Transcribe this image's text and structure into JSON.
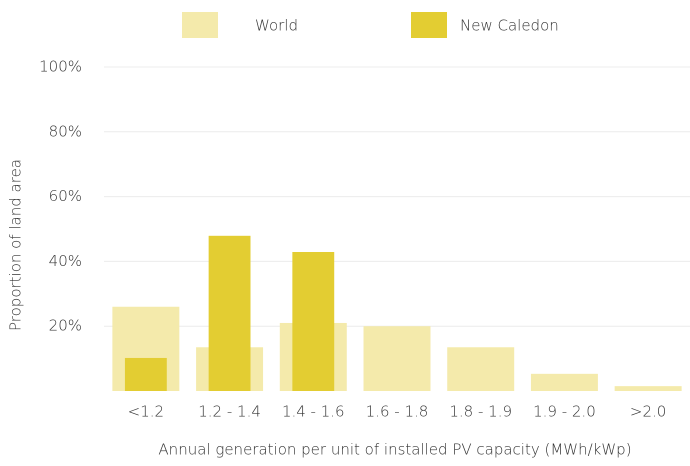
{
  "chart_data": {
    "type": "bar",
    "categories": [
      "<1.2",
      "1.2 - 1.4",
      "1.4 - 1.6",
      "1.6 - 1.8",
      "1.8 - 1.9",
      "1.9 - 2.0",
      ">2.0"
    ],
    "series": [
      {
        "name": "World",
        "color": "#f4eaab",
        "values": [
          26,
          13.5,
          21,
          20,
          13.5,
          5.3,
          1.5
        ]
      },
      {
        "name": "New Caledon",
        "color": "#e3cd32",
        "values": [
          10.2,
          47.9,
          42.9,
          0,
          0,
          0,
          0
        ]
      }
    ],
    "x_label": "Annual generation per unit of installed PV capacity (MWh/kWp)",
    "y_label": "Proportion of land area",
    "ylim": [
      0,
      100
    ],
    "yticks": [
      {
        "value": 20,
        "label": "20%"
      },
      {
        "value": 40,
        "label": "40%"
      },
      {
        "value": 60,
        "label": "60%"
      },
      {
        "value": 80,
        "label": "80%"
      },
      {
        "value": 100,
        "label": "100%"
      }
    ],
    "grid": true,
    "legend": "top"
  }
}
